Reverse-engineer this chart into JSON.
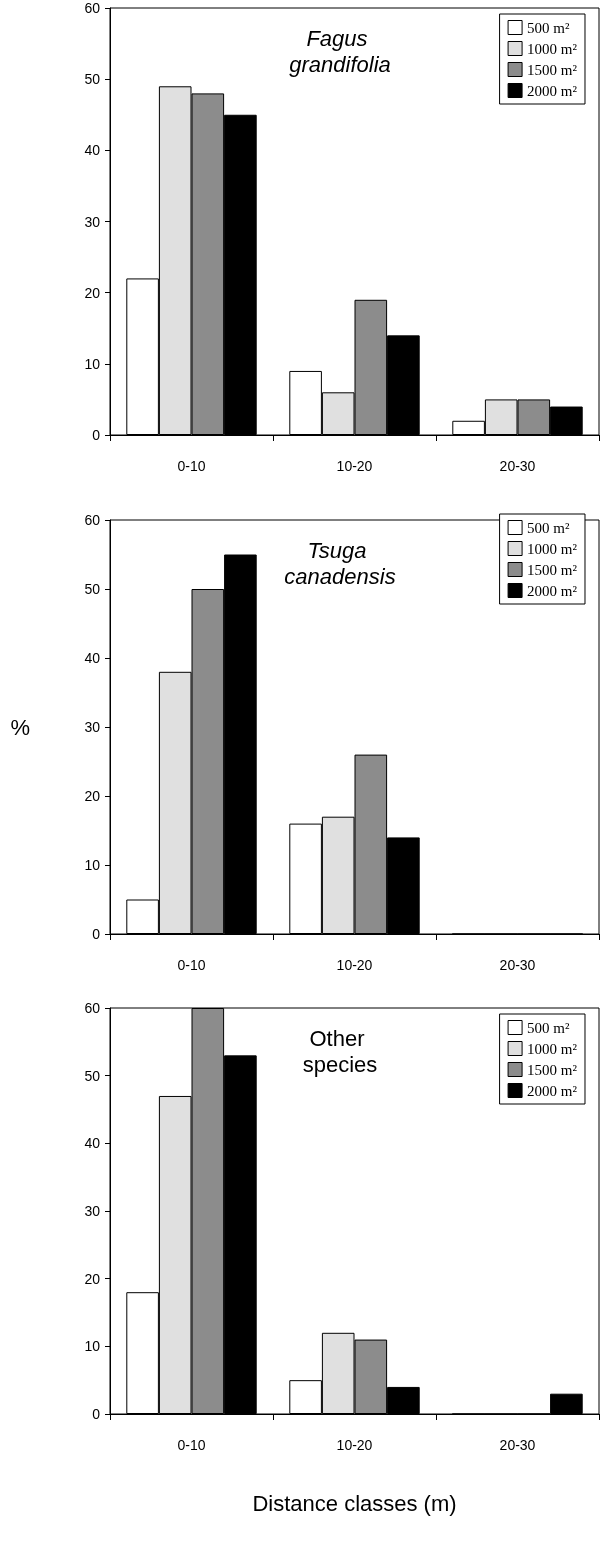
{
  "chart_data": [
    {
      "type": "bar",
      "title": "Fagus grandifolia",
      "categories": [
        "0-10",
        "10-20",
        "20-30"
      ],
      "series": [
        {
          "name": "500 m²",
          "color": "#ffffff",
          "values": [
            22,
            9,
            2
          ]
        },
        {
          "name": "1000 m²",
          "color": "#e0e0e0",
          "values": [
            49,
            6,
            5
          ]
        },
        {
          "name": "1500 m²",
          "color": "#8c8c8c",
          "values": [
            48,
            19,
            5
          ]
        },
        {
          "name": "2000 m²",
          "color": "#000000",
          "values": [
            45,
            14,
            4
          ]
        }
      ],
      "ylim": [
        0,
        60
      ],
      "yticks": [
        0,
        10,
        20,
        30,
        40,
        50,
        60
      ],
      "grid": false,
      "legend": "top right"
    },
    {
      "type": "bar",
      "title": "Tsuga canadensis",
      "ylabel": "%",
      "categories": [
        "0-10",
        "10-20",
        "20-30"
      ],
      "series": [
        {
          "name": "500 m²",
          "color": "#ffffff",
          "values": [
            5,
            16,
            0
          ]
        },
        {
          "name": "1000 m²",
          "color": "#e0e0e0",
          "values": [
            38,
            17,
            0
          ]
        },
        {
          "name": "1500 m²",
          "color": "#8c8c8c",
          "values": [
            50,
            26,
            0
          ]
        },
        {
          "name": "2000 m²",
          "color": "#000000",
          "values": [
            55,
            14,
            0
          ]
        }
      ],
      "ylim": [
        0,
        60
      ],
      "yticks": [
        0,
        10,
        20,
        30,
        40,
        50,
        60
      ],
      "grid": false,
      "legend": "top right"
    },
    {
      "type": "bar",
      "title": "Other species",
      "xlabel": "Distance classes (m)",
      "categories": [
        "0-10",
        "10-20",
        "20-30"
      ],
      "series": [
        {
          "name": "500 m²",
          "color": "#ffffff",
          "values": [
            18,
            5,
            0
          ]
        },
        {
          "name": "1000 m²",
          "color": "#e0e0e0",
          "values": [
            47,
            12,
            0
          ]
        },
        {
          "name": "1500 m²",
          "color": "#8c8c8c",
          "values": [
            60,
            11,
            0
          ]
        },
        {
          "name": "2000 m²",
          "color": "#000000",
          "values": [
            53,
            4,
            3
          ]
        }
      ],
      "ylim": [
        0,
        60
      ],
      "yticks": [
        0,
        10,
        20,
        30,
        40,
        50,
        60
      ],
      "grid": false,
      "legend": "top right"
    }
  ]
}
